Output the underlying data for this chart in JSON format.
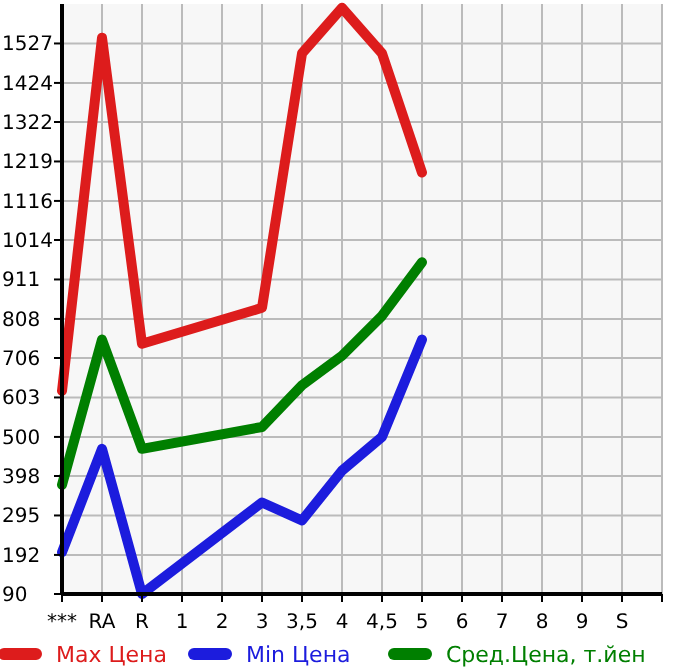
{
  "chart_data": {
    "type": "line",
    "categories": [
      "***",
      "RA",
      "R",
      "1",
      "2",
      "3",
      "3,5",
      "4",
      "4,5",
      "5",
      "6",
      "7",
      "8",
      "9",
      "S",
      null
    ],
    "ylim": [
      90,
      1630
    ],
    "yticks": [
      90,
      192,
      295,
      398,
      500,
      603,
      706,
      808,
      911,
      1014,
      1116,
      1219,
      1322,
      1424,
      1527
    ],
    "grid": true,
    "legend": "bottom",
    "marker": "none",
    "line_style": "solid",
    "series": [
      {
        "name": "Max Цена",
        "color": "#dd1c1c",
        "values": [
          620,
          1542,
          743,
          null,
          null,
          837,
          1501,
          1620,
          1501,
          1190,
          null,
          null,
          null,
          null,
          null,
          null
        ]
      },
      {
        "name": "Min Цена",
        "color": "#1c1cdd",
        "values": [
          199,
          469,
          90,
          null,
          null,
          329,
          282,
          412,
          500,
          754,
          null,
          null,
          null,
          null,
          null,
          null
        ]
      },
      {
        "name": "Сред.Цена, т.йен",
        "color": "#007f00",
        "values": [
          375,
          754,
          469,
          null,
          null,
          526,
          635,
          712,
          816,
          956,
          null,
          null,
          null,
          null,
          null,
          null
        ]
      }
    ]
  }
}
